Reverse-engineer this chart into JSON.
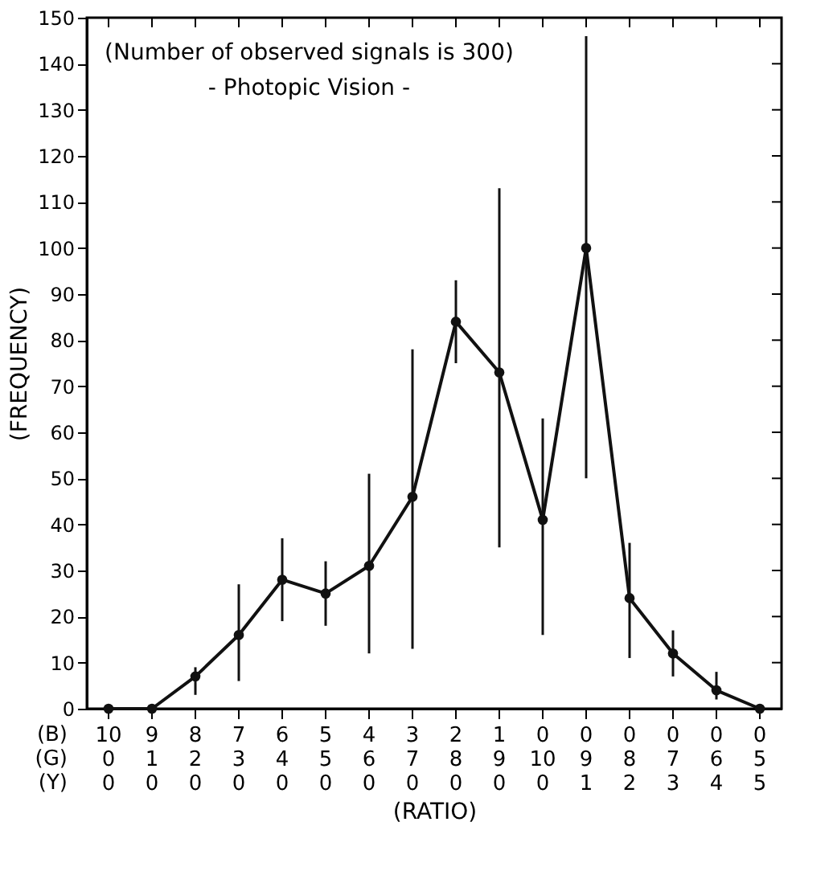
{
  "chart_data": {
    "type": "line",
    "title": "(Number of observed signals is 300)",
    "subtitle": "- Photopic Vision -",
    "xlabel": "(RATIO)",
    "ylabel": "(FREQUENCY)",
    "categories": [
      "10\n0\n0",
      "9\n1\n0",
      "8\n2\n0",
      "7\n3\n0",
      "6\n4\n0",
      "5\n5\n0",
      "4\n6\n0",
      "3\n7\n0",
      "2\n8\n0",
      "1\n9\n0",
      "0\n10\n0",
      "0\n9\n1",
      "0\n8\n2",
      "0\n7\n3",
      "0\n6\n4",
      "0\n5\n5"
    ],
    "series": [
      {
        "color": "#111111",
        "values": [
          0,
          0,
          7,
          16,
          28,
          25,
          31,
          46,
          84,
          73,
          41,
          100,
          24,
          12,
          4,
          0
        ],
        "errors": [
          null,
          null,
          [
            3,
            9
          ],
          [
            6,
            27
          ],
          [
            19,
            37
          ],
          [
            18,
            32
          ],
          [
            12,
            51
          ],
          [
            13,
            78
          ],
          [
            75,
            93
          ],
          [
            35,
            113
          ],
          [
            16,
            63
          ],
          [
            50,
            146
          ],
          [
            11,
            36
          ],
          [
            7,
            17
          ],
          [
            2,
            8
          ],
          null
        ]
      }
    ],
    "annotations": [
      "(B)",
      "(G)",
      "(Y)"
    ],
    "ylim": [
      0,
      150
    ],
    "yticks": [
      0,
      10,
      20,
      30,
      40,
      50,
      60,
      70,
      80,
      90,
      100,
      110,
      120,
      130,
      140,
      150
    ],
    "grid": false,
    "marker": "circle",
    "line_style": "solid"
  }
}
